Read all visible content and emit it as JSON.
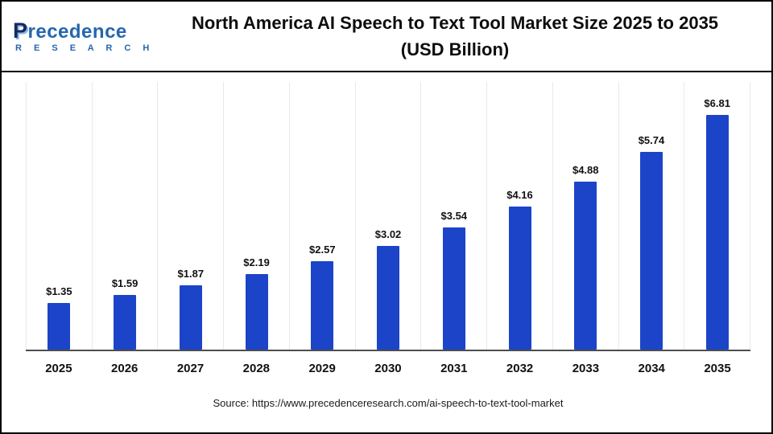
{
  "brand": {
    "name_p": "P",
    "name_rest": "recedence",
    "subtitle": "R E S E A R C H"
  },
  "header": {
    "title_line1": "North America AI Speech to Text Tool Market Size 2025 to 2035",
    "title_line2": "(USD Billion)"
  },
  "chart_data": {
    "type": "bar",
    "title": "North America AI Speech to Text Tool Market Size 2025 to 2035 (USD Billion)",
    "categories": [
      "2025",
      "2026",
      "2027",
      "2028",
      "2029",
      "2030",
      "2031",
      "2032",
      "2033",
      "2034",
      "2035"
    ],
    "values": [
      1.35,
      1.59,
      1.87,
      2.19,
      2.57,
      3.02,
      3.54,
      4.16,
      4.88,
      5.74,
      6.81
    ],
    "value_labels": [
      "$1.35",
      "$1.59",
      "$1.87",
      "$2.19",
      "$2.57",
      "$3.02",
      "$3.54",
      "$4.16",
      "$4.88",
      "$5.74",
      "$6.81"
    ],
    "xlabel": "",
    "ylabel": "",
    "ylim": [
      0,
      7
    ],
    "unit": "USD Billion",
    "bar_color": "#1b44c8",
    "grid": "vertical-light",
    "legend": "none"
  },
  "footer": {
    "source": "Source: https://www.precedenceresearch.com/ai-speech-to-text-tool-market"
  }
}
